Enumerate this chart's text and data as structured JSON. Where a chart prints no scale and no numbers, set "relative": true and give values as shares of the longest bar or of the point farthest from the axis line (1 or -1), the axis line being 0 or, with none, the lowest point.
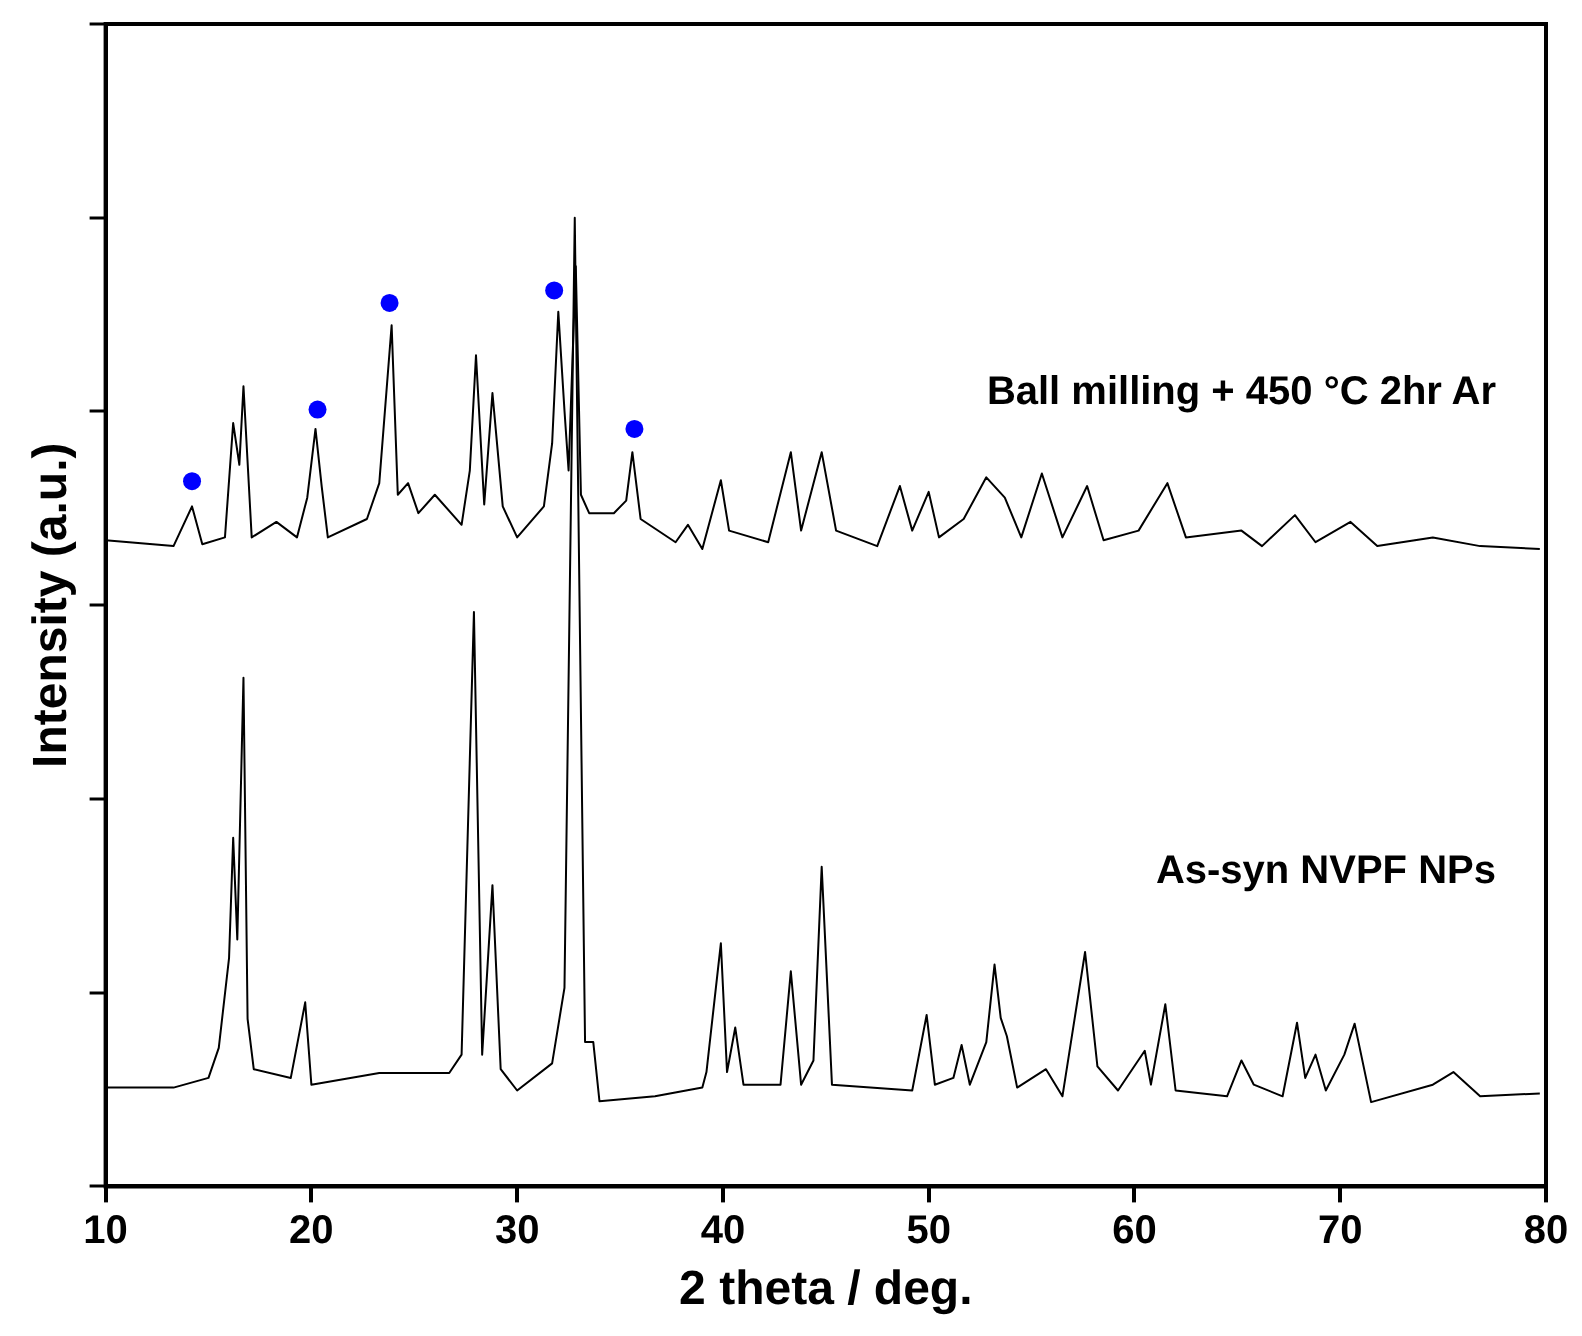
{
  "chart_data": {
    "type": "line",
    "relative": true,
    "xlabel": "2 theta / deg.",
    "ylabel": "Intensity (a.u.)",
    "xlim": [
      10,
      80
    ],
    "xticks": [
      10,
      20,
      30,
      40,
      50,
      60,
      70,
      80
    ],
    "tick_labels": "x",
    "grid": false,
    "legend": false,
    "marker": "none",
    "line_style": "solid",
    "series": [
      {
        "name": "Ball milling + 450 °C 2hr Ar",
        "color": "#000000",
        "x": [
          10,
          13.3,
          14.2,
          14.7,
          15.8,
          16.2,
          16.5,
          16.7,
          17.1,
          18.3,
          19.3,
          19.8,
          20.2,
          20.5,
          20.8,
          22.7,
          23.3,
          23.9,
          24.2,
          24.7,
          25.2,
          26,
          27.3,
          27.7,
          28,
          28.4,
          28.8,
          29.3,
          30,
          31.3,
          31.7,
          32,
          32.3,
          32.5,
          32.85,
          33.1,
          33.5,
          34.7,
          35.3,
          35.6,
          36,
          37.7,
          38.3,
          39,
          39.9,
          40.3,
          42.2,
          43.3,
          43.8,
          44.8,
          45.5,
          47.5,
          48.6,
          49.2,
          50,
          50.5,
          51.7,
          52.8,
          53.7,
          54.5,
          55.5,
          56.5,
          57.7,
          58.5,
          60.2,
          61.6,
          62.5,
          65.2,
          66.2,
          67.8,
          68.8,
          70.5,
          71.8,
          74.5,
          76.8,
          79.7
        ],
        "values": [
          0.667,
          0.661,
          0.702,
          0.663,
          0.67,
          0.788,
          0.745,
          0.826,
          0.67,
          0.686,
          0.67,
          0.711,
          0.782,
          0.723,
          0.67,
          0.689,
          0.726,
          0.889,
          0.714,
          0.726,
          0.695,
          0.714,
          0.683,
          0.739,
          0.858,
          0.704,
          0.819,
          0.702,
          0.67,
          0.702,
          0.767,
          0.903,
          0.801,
          0.739,
          0.95,
          0.714,
          0.695,
          0.695,
          0.708,
          0.758,
          0.689,
          0.665,
          0.683,
          0.658,
          0.729,
          0.677,
          0.665,
          0.758,
          0.677,
          0.758,
          0.677,
          0.661,
          0.723,
          0.677,
          0.717,
          0.67,
          0.689,
          0.732,
          0.711,
          0.67,
          0.736,
          0.67,
          0.723,
          0.667,
          0.677,
          0.726,
          0.67,
          0.677,
          0.661,
          0.693,
          0.665,
          0.686,
          0.661,
          0.67,
          0.661,
          0.658
        ]
      },
      {
        "name": "As-syn NVPF NPs",
        "color": "#000000",
        "x": [
          10,
          13.3,
          15,
          15.5,
          16,
          16.2,
          16.4,
          16.7,
          16.9,
          17.2,
          19,
          19.7,
          20,
          23.3,
          26.7,
          27.3,
          27.9,
          28.3,
          28.8,
          29.2,
          30,
          31.7,
          32.3,
          32.8,
          33.3,
          33.7,
          34,
          36.7,
          39,
          39.2,
          39.9,
          40.2,
          40.6,
          41,
          42.8,
          43.3,
          43.8,
          44.4,
          44.8,
          45.3,
          49.2,
          49.9,
          50.3,
          51.2,
          51.6,
          52,
          52.8,
          53.2,
          53.5,
          53.8,
          54.3,
          55.7,
          56.5,
          57.6,
          58.2,
          59.2,
          60.5,
          60.8,
          61.5,
          62,
          64.5,
          65.2,
          65.8,
          67.2,
          67.9,
          68.3,
          68.8,
          69.3,
          70.2,
          70.7,
          71.5,
          74.5,
          75.5,
          76.8,
          79.7
        ],
        "values": [
          0.102,
          0.102,
          0.112,
          0.143,
          0.236,
          0.36,
          0.255,
          0.525,
          0.173,
          0.121,
          0.112,
          0.19,
          0.105,
          0.117,
          0.117,
          0.136,
          0.593,
          0.136,
          0.311,
          0.121,
          0.099,
          0.127,
          0.205,
          1,
          0.149,
          0.149,
          0.088,
          0.093,
          0.102,
          0.118,
          0.251,
          0.118,
          0.164,
          0.105,
          0.105,
          0.222,
          0.105,
          0.13,
          0.33,
          0.105,
          0.099,
          0.177,
          0.105,
          0.112,
          0.146,
          0.105,
          0.149,
          0.229,
          0.174,
          0.155,
          0.102,
          0.121,
          0.093,
          0.242,
          0.124,
          0.099,
          0.14,
          0.105,
          0.188,
          0.099,
          0.093,
          0.13,
          0.105,
          0.093,
          0.169,
          0.112,
          0.136,
          0.099,
          0.136,
          0.168,
          0.087,
          0.105,
          0.118,
          0.093,
          0.096
        ]
      },
      {
        "type": "scatter",
        "marker": "circle",
        "color": "#0000ff",
        "x": [
          14.2,
          20.3,
          23.8,
          31.8,
          35.7
        ],
        "values": [
          0.728,
          0.802,
          0.912,
          0.925,
          0.782
        ]
      }
    ]
  }
}
